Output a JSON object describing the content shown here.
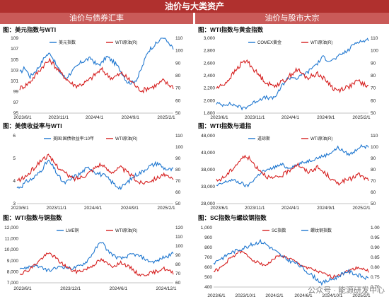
{
  "header": {
    "title": "油价与大类资产"
  },
  "sections": {
    "left": "油价与债券汇率",
    "right": "油价与股市大宗"
  },
  "watermark": "公众号 · 能源研发中心",
  "colors": {
    "blue": "#1f77d0",
    "red": "#d62020",
    "header": "#b0302e",
    "subheader": "#c95a58"
  },
  "chart_data": [
    {
      "type": "line",
      "title": "图：美元指数与WTI",
      "x_ticks": [
        "2023/6/1",
        "2023/11/1",
        "2024/4/1",
        "2024/9/1",
        "2025/2/1"
      ],
      "ylim_left": [
        95,
        109
      ],
      "yticks_left": [
        "95",
        "97",
        "99",
        "101",
        "103",
        "105",
        "107",
        "109"
      ],
      "ylim_right": [
        50,
        110
      ],
      "yticks_right": [
        "50",
        "60",
        "70",
        "80",
        "90",
        "100",
        "110"
      ],
      "series": [
        {
          "name": "美元指数",
          "axis": "left",
          "color": "#1f77d0",
          "values": [
            102.5,
            103.5,
            101.8,
            102.8,
            104.0,
            105.7,
            106.2,
            104.2,
            102.5,
            101.5,
            102.6,
            103.5,
            104.5,
            105.0,
            105.2,
            104.0,
            104.3,
            105.6,
            104.8,
            103.9,
            102.5,
            100.8,
            100.7,
            101.5,
            103.8,
            106.5,
            107.5,
            108.2,
            109.6,
            108.0,
            107.0
          ]
        },
        {
          "name": "WTI原油(R)",
          "axis": "right",
          "color": "#d62020",
          "values": [
            70,
            72,
            75,
            80,
            85,
            90,
            92,
            87,
            82,
            78,
            74,
            72,
            73,
            75,
            78,
            82,
            85,
            81,
            78,
            80,
            82,
            78,
            75,
            70,
            68,
            70,
            71,
            73,
            76,
            73,
            71
          ]
        }
      ]
    },
    {
      "type": "line",
      "title": "图：WTI指数与黄金指数",
      "x_ticks": [
        "2023/6/1",
        "2023/11/1",
        "2024/4/1",
        "2024/9/1",
        "2025/2/1"
      ],
      "ylim_left": [
        1800,
        3000
      ],
      "yticks_left": [
        "1,800",
        "2,000",
        "2,200",
        "2,400",
        "2,600",
        "2,800",
        "3,000"
      ],
      "ylim_right": [
        50,
        110
      ],
      "yticks_right": [
        "50",
        "60",
        "70",
        "80",
        "90",
        "100",
        "110"
      ],
      "series": [
        {
          "name": "COMEX黄金",
          "axis": "left",
          "color": "#1f77d0",
          "values": [
            1960,
            1930,
            1950,
            1940,
            1920,
            1880,
            1900,
            1950,
            2000,
            2040,
            2050,
            2030,
            2100,
            2250,
            2350,
            2380,
            2350,
            2420,
            2450,
            2540,
            2600,
            2700,
            2650,
            2650,
            2700,
            2760,
            2800,
            2900,
            2950,
            2950,
            2980
          ]
        },
        {
          "name": "WTI原油(R)",
          "axis": "right",
          "color": "#d62020",
          "values": [
            70,
            72,
            75,
            80,
            85,
            90,
            92,
            87,
            82,
            78,
            74,
            72,
            73,
            75,
            78,
            82,
            85,
            81,
            78,
            80,
            82,
            78,
            75,
            70,
            68,
            70,
            71,
            73,
            76,
            73,
            71
          ]
        }
      ]
    },
    {
      "type": "line",
      "title": "图：美债收益率与WTI",
      "x_ticks": [
        "2023/6/1",
        "2023/11/1",
        "2024/4/1",
        "2024/9/1",
        "2025/2/1"
      ],
      "ylim_left": [
        3,
        6
      ],
      "yticks_left": [
        "3",
        "4",
        "5",
        "6"
      ],
      "ylim_right": [
        50,
        110
      ],
      "yticks_right": [
        "50",
        "60",
        "70",
        "80",
        "90",
        "100",
        "110"
      ],
      "series": [
        {
          "name": "美国:国债收益率:10年",
          "axis": "left",
          "color": "#1f77d0",
          "values": [
            3.7,
            3.8,
            4.0,
            4.1,
            4.3,
            4.6,
            4.9,
            4.6,
            4.2,
            3.9,
            4.0,
            4.2,
            4.3,
            4.5,
            4.6,
            4.4,
            4.3,
            4.2,
            4.0,
            3.8,
            3.7,
            3.9,
            4.1,
            4.3,
            4.4,
            4.6,
            4.7,
            4.8,
            4.6,
            4.5,
            4.5
          ]
        },
        {
          "name": "WTI原油(R)",
          "axis": "right",
          "color": "#d62020",
          "values": [
            70,
            72,
            75,
            80,
            85,
            90,
            92,
            87,
            82,
            78,
            74,
            72,
            73,
            75,
            78,
            82,
            85,
            81,
            78,
            80,
            82,
            78,
            75,
            70,
            68,
            70,
            71,
            73,
            76,
            73,
            71
          ]
        }
      ]
    },
    {
      "type": "line",
      "title": "图：WTI指数与道指",
      "x_ticks": [
        "2023/6/1",
        "2023/11/1",
        "2024/4/1",
        "2024/9/1",
        "2025/2/1"
      ],
      "ylim_left": [
        28000,
        48000
      ],
      "yticks_left": [
        "28,000",
        "33,000",
        "38,000",
        "43,000",
        "48,000"
      ],
      "ylim_right": [
        50,
        110
      ],
      "yticks_right": [
        "50",
        "60",
        "70",
        "80",
        "90",
        "100",
        "110"
      ],
      "series": [
        {
          "name": "道琼斯",
          "axis": "left",
          "color": "#1f77d0",
          "values": [
            33200,
            33800,
            34500,
            35000,
            34500,
            34000,
            33000,
            34500,
            36000,
            37500,
            37700,
            38500,
            39000,
            39500,
            38500,
            39000,
            39500,
            40000,
            40500,
            41000,
            41500,
            42000,
            42500,
            43500,
            44500,
            43500,
            42500,
            43000,
            44500,
            45000,
            44500
          ]
        },
        {
          "name": "WTI原油(R)",
          "axis": "right",
          "color": "#d62020",
          "values": [
            70,
            72,
            75,
            80,
            85,
            90,
            92,
            87,
            82,
            78,
            74,
            72,
            73,
            75,
            78,
            82,
            85,
            81,
            78,
            80,
            82,
            78,
            75,
            70,
            68,
            70,
            71,
            73,
            76,
            73,
            71
          ]
        }
      ]
    },
    {
      "type": "line",
      "title": "图：WTI指数与铜指数",
      "x_ticks": [
        "2023/6/1",
        "2023/12/1",
        "2024/6/1",
        "2024/12/1"
      ],
      "ylim_left": [
        7000,
        12000
      ],
      "yticks_left": [
        "7,000",
        "8,000",
        "9,000",
        "10,000",
        "11,000",
        "12,000"
      ],
      "ylim_right": [
        60,
        120
      ],
      "yticks_right": [
        "60",
        "70",
        "80",
        "90",
        "100",
        "110",
        "120"
      ],
      "series": [
        {
          "name": "LME铜",
          "axis": "left",
          "color": "#1f77d0",
          "values": [
            8400,
            8300,
            8500,
            8600,
            8400,
            8200,
            8100,
            8300,
            8500,
            8400,
            8300,
            8400,
            8600,
            8900,
            9500,
            10200,
            10800,
            10000,
            9600,
            9300,
            9200,
            9400,
            9600,
            9500,
            9300,
            9000,
            8900,
            9000,
            9300,
            9400,
            9700
          ]
        },
        {
          "name": "WTI原油(R)",
          "axis": "right",
          "color": "#d62020",
          "values": [
            70,
            72,
            75,
            80,
            85,
            90,
            92,
            87,
            82,
            78,
            74,
            72,
            73,
            75,
            78,
            82,
            85,
            81,
            78,
            80,
            82,
            78,
            75,
            70,
            68,
            70,
            71,
            73,
            76,
            73,
            71
          ]
        }
      ]
    },
    {
      "type": "line",
      "title": "图：SC指数与螺纹钢指数",
      "x_ticks": [
        "2023/6/1",
        "2023/10/1",
        "2024/2/1",
        "2024/6/1",
        "2024/10/1",
        "2025/2/1"
      ],
      "ylim_left": [
        400,
        1000
      ],
      "yticks_left": [
        "400",
        "500",
        "600",
        "700",
        "800",
        "900",
        "1,000"
      ],
      "ylim_right": [
        0.7,
        1.0
      ],
      "yticks_right": [
        "0.70",
        "0.75",
        "0.80",
        "0.85",
        "0.90",
        "0.95",
        "1.00"
      ],
      "series": [
        {
          "name": "SC指数",
          "axis": "left",
          "color": "#d62020",
          "values": [
            560,
            580,
            620,
            680,
            720,
            760,
            740,
            700,
            660,
            640,
            620,
            650,
            700,
            720,
            700,
            680,
            650,
            620,
            600,
            580,
            560,
            540,
            520,
            500,
            520,
            540,
            560,
            580,
            600,
            580,
            560
          ]
        },
        {
          "name": "螺纹钢指数",
          "axis": "right",
          "color": "#1f77d0",
          "values": [
            0.82,
            0.84,
            0.85,
            0.87,
            0.88,
            0.89,
            0.9,
            0.91,
            0.92,
            0.93,
            0.92,
            0.9,
            0.88,
            0.86,
            0.84,
            0.83,
            0.82,
            0.8,
            0.78,
            0.76,
            0.74,
            0.72,
            0.73,
            0.74,
            0.75,
            0.77,
            0.78,
            0.77,
            0.76,
            0.75,
            0.74
          ]
        }
      ]
    }
  ]
}
